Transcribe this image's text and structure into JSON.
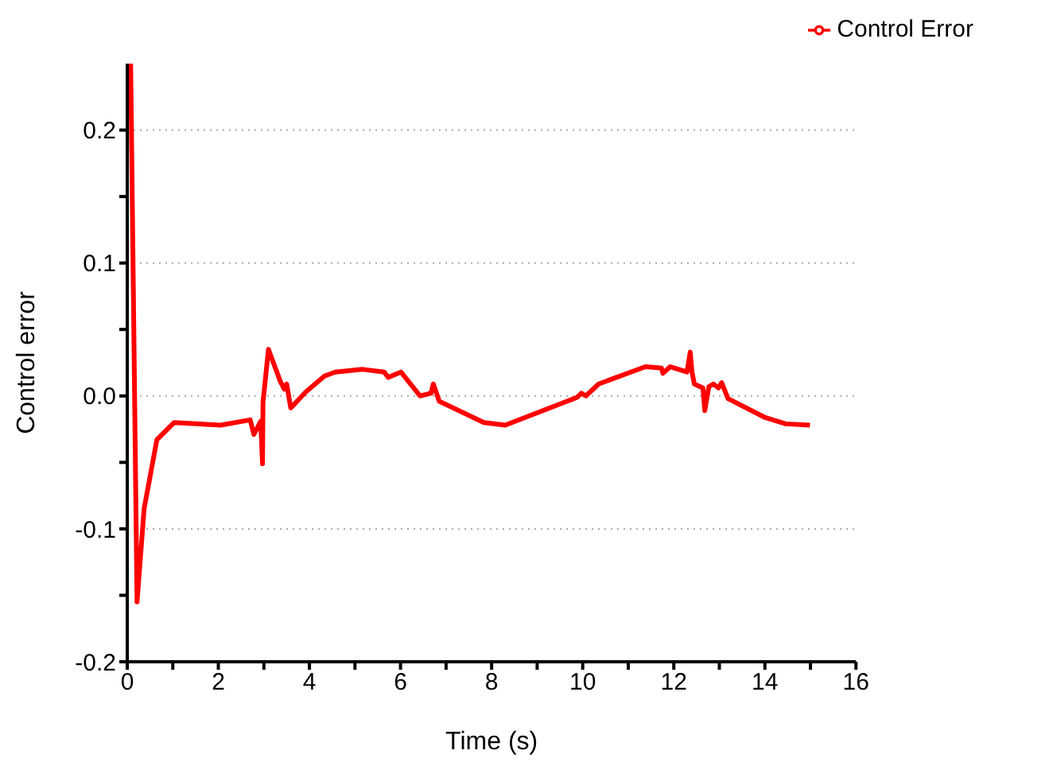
{
  "chart_data": {
    "type": "line",
    "xlabel": "Time (s)",
    "ylabel": "Control error",
    "xlim": [
      0,
      16
    ],
    "ylim": [
      -0.2,
      0.25
    ],
    "xticks": [
      0,
      {
        "value": 1,
        "label": null
      },
      2,
      {
        "value": 3,
        "label": null
      },
      4,
      {
        "value": 5,
        "label": null
      },
      6,
      {
        "value": 7,
        "label": null
      },
      8,
      {
        "value": 9,
        "label": null
      },
      10,
      {
        "value": 11,
        "label": null
      },
      12,
      {
        "value": 13,
        "label": null
      },
      14,
      {
        "value": 15,
        "label": null
      },
      16
    ],
    "yticks": [
      -0.2,
      {
        "value": -0.15,
        "label": null
      },
      -0.1,
      {
        "value": -0.05,
        "label": null
      },
      {
        "value": 0,
        "label": "0.0"
      },
      {
        "value": 0.05,
        "label": null
      },
      0.1,
      {
        "value": 0.15,
        "label": null
      },
      0.2
    ],
    "grid": "y",
    "legend": "top right",
    "marker": "none",
    "line_style": "solid",
    "series": [
      {
        "name": "Control Error",
        "color": "#ff0000",
        "x": [
          0.075,
          0.215,
          0.37,
          0.65,
          1.03,
          2.05,
          2.7,
          2.78,
          2.93,
          2.97,
          2.98,
          3.1,
          3.36,
          3.45,
          3.5,
          3.59,
          3.92,
          4.33,
          4.57,
          5.17,
          5.64,
          5.73,
          6.01,
          6.43,
          6.67,
          6.72,
          6.85,
          7.83,
          8.3,
          9.88,
          9.97,
          10.07,
          10.35,
          11.38,
          11.73,
          11.76,
          11.92,
          12.29,
          12.36,
          12.4,
          12.45,
          12.64,
          12.68,
          12.77,
          12.87,
          12.98,
          13.05,
          13.19,
          13.99,
          14.46,
          14.99
        ],
        "values": [
          0.25,
          -0.155,
          -0.085,
          -0.033,
          -0.02,
          -0.022,
          -0.018,
          -0.029,
          -0.019,
          -0.051,
          -0.005,
          0.035,
          0.011,
          0.005,
          0.009,
          -0.009,
          0.003,
          0.015,
          0.018,
          0.02,
          0.018,
          0.014,
          0.018,
          0.0,
          0.002,
          0.009,
          -0.004,
          -0.02,
          -0.022,
          -0.001,
          0.002,
          0.0,
          0.009,
          0.022,
          0.021,
          0.017,
          0.022,
          0.018,
          0.033,
          0.018,
          0.009,
          0.006,
          -0.011,
          0.007,
          0.009,
          0.006,
          0.01,
          -0.002,
          -0.016,
          -0.021,
          -0.022
        ]
      }
    ]
  }
}
